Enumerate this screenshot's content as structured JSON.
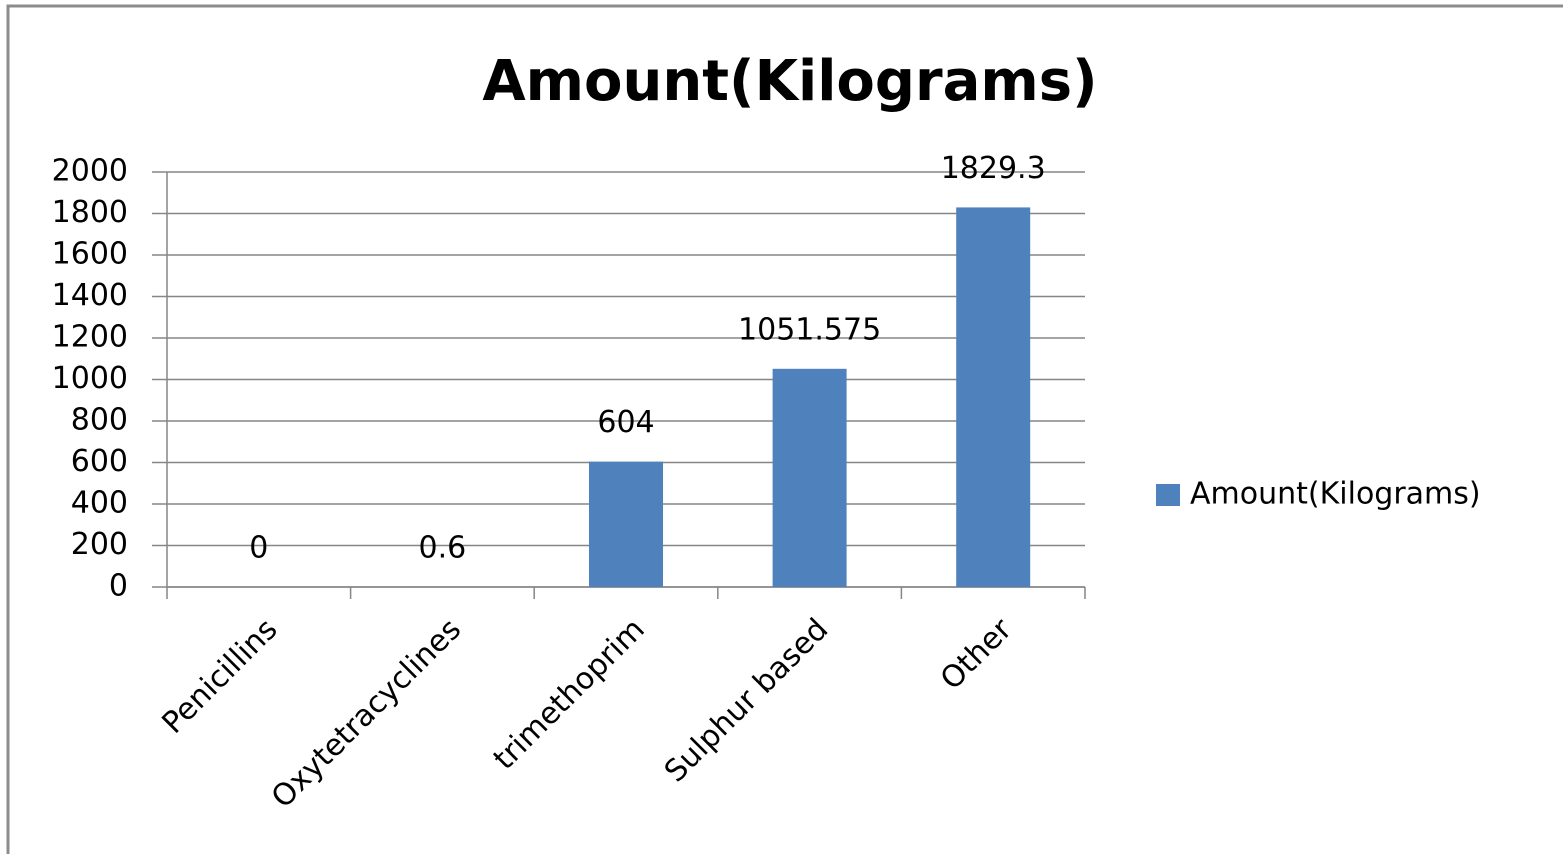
{
  "chart_data": {
    "type": "bar",
    "title": "Amount(Kilograms)",
    "categories": [
      "Penicillins",
      "Oxytetracyclines",
      "trimethoprim",
      "Sulphur based",
      "Other"
    ],
    "series": [
      {
        "name": "Amount(Kilograms)",
        "color": "#4f81bd",
        "values": [
          0,
          0.6,
          604,
          1051.575,
          1829.3
        ]
      }
    ],
    "ylim": [
      0,
      2000
    ],
    "yticks": [
      0,
      200,
      400,
      600,
      800,
      1000,
      1200,
      1400,
      1600,
      1800,
      2000
    ],
    "grid": true,
    "legend": "right"
  }
}
